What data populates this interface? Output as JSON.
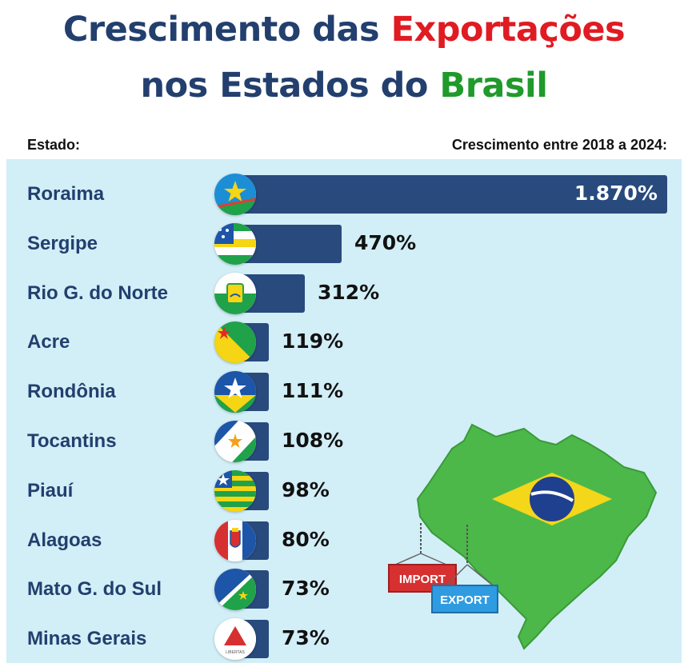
{
  "header": {
    "title_line1_a": "Crescimento das ",
    "title_line1_b": "Exportações",
    "title_line2_a": "nos Estados do ",
    "title_line2_b": "Brasil",
    "col_state": "Estado:",
    "col_growth": "Crescimento entre 2018 a 2024:"
  },
  "colors": {
    "title": "#223f6e",
    "accent_red": "#e01b22",
    "accent_green": "#1f9a2b",
    "bar": "#284a7d",
    "panel": "#d2eef7"
  },
  "chart_data": {
    "type": "bar",
    "orientation": "horizontal",
    "categories": [
      "Roraima",
      "Sergipe",
      "Rio G. do Norte",
      "Acre",
      "Rondônia",
      "Tocantins",
      "Piauí",
      "Alagoas",
      "Mato G. do Sul",
      "Minas Gerais"
    ],
    "values": [
      1870,
      470,
      312,
      119,
      111,
      108,
      98,
      80,
      73,
      73
    ],
    "value_labels": [
      "1.870%",
      "470%",
      "312%",
      "119%",
      "111%",
      "108%",
      "98%",
      "80%",
      "73%",
      "73%"
    ],
    "flag_icons": [
      "roraima-flag-icon",
      "sergipe-flag-icon",
      "rio-grande-do-norte-flag-icon",
      "acre-flag-icon",
      "rondonia-flag-icon",
      "tocantins-flag-icon",
      "piaui-flag-icon",
      "alagoas-flag-icon",
      "mato-grosso-do-sul-flag-icon",
      "minas-gerais-flag-icon"
    ],
    "unit": "%"
  },
  "map": {
    "import_label": "IMPORT",
    "export_label": "EXPORT",
    "icon": "brazil-map-with-flag-icon"
  }
}
